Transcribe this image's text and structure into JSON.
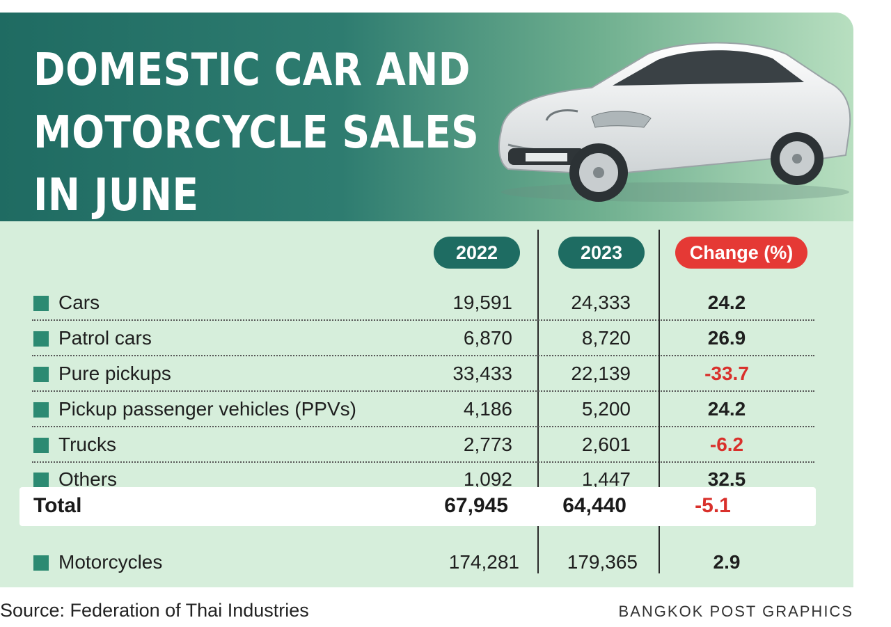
{
  "title_lines": [
    "DOMESTIC CAR AND",
    "MOTORCYCLE SALES",
    "IN JUNE"
  ],
  "columns": {
    "y2022": "2022",
    "y2023": "2023",
    "change": "Change (%)"
  },
  "colors": {
    "header_dark": "#1f6b62",
    "panel": "#d6eedb",
    "accent_red": "#e53935",
    "bullet": "#2c8a72"
  },
  "chart_data": {
    "type": "table",
    "title": "DOMESTIC CAR AND MOTORCYCLE SALES IN JUNE",
    "columns": [
      "2022",
      "2023",
      "Change (%)"
    ],
    "rows": [
      {
        "label": "Cars",
        "v2022": "19,591",
        "v2023": "24,333",
        "change": "24.2"
      },
      {
        "label": "Patrol cars",
        "v2022": "6,870",
        "v2023": "8,720",
        "change": "26.9"
      },
      {
        "label": "Pure pickups",
        "v2022": "33,433",
        "v2023": "22,139",
        "change": "-33.7"
      },
      {
        "label": "Pickup passenger vehicles (PPVs)",
        "v2022": "4,186",
        "v2023": "5,200",
        "change": "24.2"
      },
      {
        "label": "Trucks",
        "v2022": "2,773",
        "v2023": "2,601",
        "change": "-6.2"
      },
      {
        "label": "Others",
        "v2022": "1,092",
        "v2023": "1,447",
        "change": "32.5"
      }
    ],
    "total": {
      "label": "Total",
      "v2022": "67,945",
      "v2023": "64,440",
      "change": "-5.1"
    },
    "extra": {
      "label": "Motorcycles",
      "v2022": "174,281",
      "v2023": "179,365",
      "change": "2.9"
    }
  },
  "footer": {
    "source": "Source: Federation of Thai Industries",
    "credit": "BANGKOK POST GRAPHICS"
  }
}
